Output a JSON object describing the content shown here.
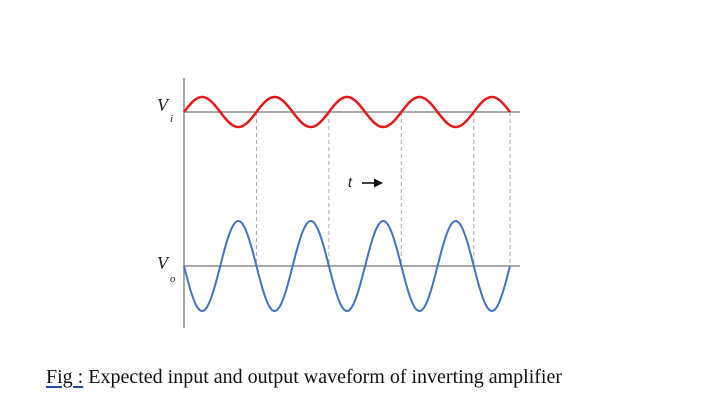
{
  "diagram": {
    "input_label": {
      "main": "V",
      "subscript": "i"
    },
    "output_label": {
      "main": "V",
      "subscript": "o"
    },
    "time_label": "t",
    "colors": {
      "input_wave": "#e8171b",
      "output_wave": "#4472c4",
      "axes": "#8c8c8c",
      "guides": "#a6a6a6"
    },
    "input_cycles": 4.5,
    "output_cycles": 4.5,
    "input_amplitude_relative": 1,
    "output_amplitude_relative": 3,
    "phase_relation": "inverted"
  },
  "caption": {
    "prefix": "Fig :",
    "text": " Expected input and output waveform of inverting amplifier"
  }
}
